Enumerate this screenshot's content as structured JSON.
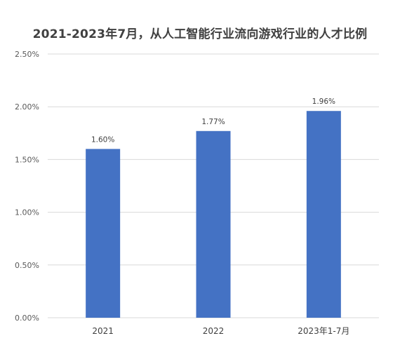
{
  "chart_data": {
    "type": "bar",
    "title": "2021-2023年7月，从人工智能行业流向游戏行业的人才比例",
    "categories": [
      "2021",
      "2022",
      "2023年1-7月"
    ],
    "values": [
      1.6,
      1.77,
      1.96
    ],
    "data_labels": [
      "1.60%",
      "1.77%",
      "1.96%"
    ],
    "ylim": [
      0,
      2.5
    ],
    "yticks": [
      0,
      0.5,
      1.0,
      1.5,
      2.0,
      2.5
    ],
    "ytick_labels": [
      "0.00%",
      "0.50%",
      "1.00%",
      "1.50%",
      "2.00%",
      "2.50%"
    ],
    "xlabel": "",
    "ylabel": "",
    "grid": true,
    "legend": "none",
    "bar_color": "#4472C4",
    "grid_color": "#D9D9D9"
  }
}
